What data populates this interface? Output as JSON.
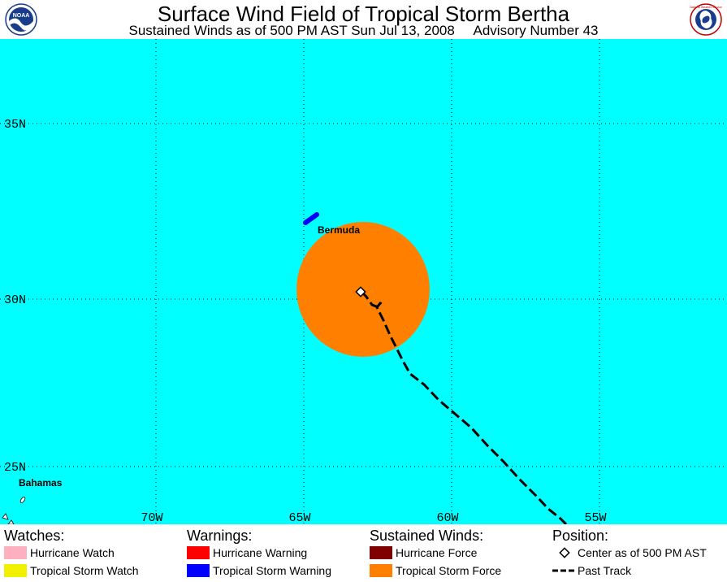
{
  "header": {
    "title": "Surface Wind Field of Tropical Storm Bertha",
    "subtitle": "Sustained Winds as of 500 PM AST Sun Jul 13, 2008     Advisory Number 43",
    "noaa_logo_text": "NOAA",
    "nws_logo_text": "National Weather Service"
  },
  "map": {
    "ocean_color": "#00ffff",
    "lat_labels": [
      "35N",
      "30N",
      "25N"
    ],
    "lon_labels": [
      "70W",
      "65W",
      "60W",
      "55W"
    ],
    "place_labels": {
      "bermuda": "Bermuda",
      "bahamas": "Bahamas"
    },
    "storm_center": {
      "lon": -63.0,
      "lat": 30.2
    },
    "tropical_storm_wind_color": "#ff8000",
    "tropical_storm_warning_color": "#0000ff"
  },
  "legend": {
    "watches": {
      "heading": "Watches:",
      "items": [
        {
          "label": "Hurricane Watch",
          "color": "#ffb0c0"
        },
        {
          "label": "Tropical Storm Watch",
          "color": "#f0f000"
        }
      ]
    },
    "warnings": {
      "heading": "Warnings:",
      "items": [
        {
          "label": "Hurricane Warning",
          "color": "#ff0000"
        },
        {
          "label": "Tropical Storm Warning",
          "color": "#0000ff"
        }
      ]
    },
    "winds": {
      "heading": "Sustained Winds:",
      "items": [
        {
          "label": "Hurricane Force",
          "color": "#800000"
        },
        {
          "label": "Tropical Storm Force",
          "color": "#ff8000"
        }
      ]
    },
    "position": {
      "heading": "Position:",
      "items": [
        {
          "label": "Center as of 500 PM AST"
        },
        {
          "label": "Past Track"
        }
      ]
    }
  }
}
